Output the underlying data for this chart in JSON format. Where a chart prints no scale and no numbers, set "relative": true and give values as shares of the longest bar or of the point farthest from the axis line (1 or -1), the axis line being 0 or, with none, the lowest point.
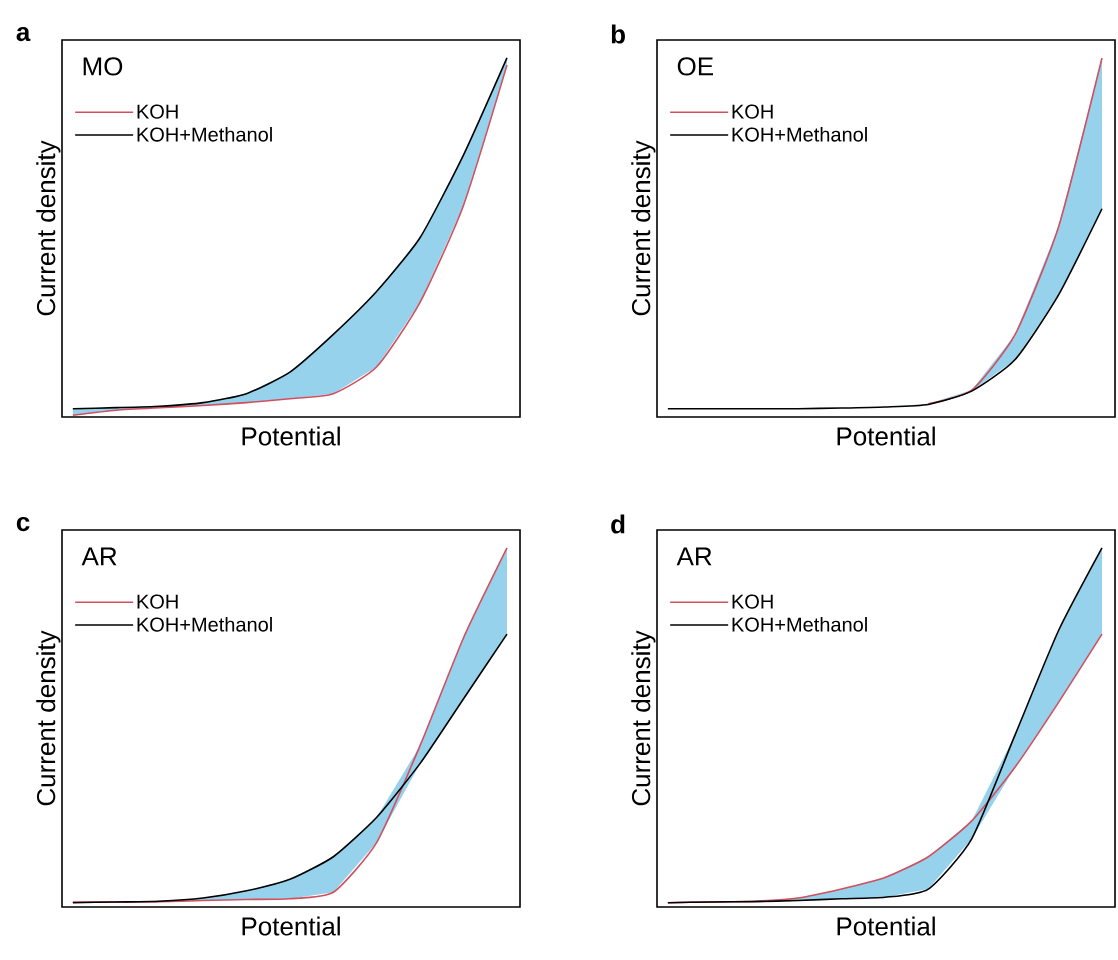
{
  "chart_data": [
    {
      "type": "line",
      "title": "a",
      "annotations": [
        "MO"
      ],
      "xlabel": "Potential",
      "ylabel": "Current density",
      "relative": true,
      "legend": "top left",
      "categories": [
        null,
        null,
        null,
        null,
        null,
        null,
        null,
        null,
        null,
        null,
        null
      ],
      "series": [
        {
          "name": "KOH",
          "color": "#d0505f",
          "values": [
            0.005,
            0.019,
            0.026,
            0.032,
            0.04,
            0.051,
            0.065,
            0.14,
            0.32,
            0.59,
            0.98
          ]
        },
        {
          "name": "KOH+Methanol",
          "color": "#000000",
          "values": [
            0.023,
            0.026,
            0.03,
            0.04,
            0.065,
            0.125,
            0.23,
            0.35,
            0.5,
            0.73,
            1
          ],
          "lower": [
            0.005,
            0.019,
            0.026,
            0.032,
            0.04,
            0.051,
            0.065,
            0.14,
            0.32,
            0.59,
            0.98
          ],
          "upper": [
            0.023,
            0.026,
            0.03,
            0.04,
            0.065,
            0.125,
            0.23,
            0.35,
            0.5,
            0.73,
            1
          ]
        }
      ]
    },
    {
      "type": "line",
      "title": "b",
      "annotations": [
        "OE"
      ],
      "xlabel": "Potential",
      "ylabel": "Current density",
      "relative": true,
      "legend": "top left",
      "categories": [
        null,
        null,
        null,
        null,
        null,
        null,
        null,
        null,
        null,
        null,
        null
      ],
      "series": [
        {
          "name": "KOH",
          "color": "#d0505f",
          "values": [
            null,
            null,
            null,
            null,
            null,
            null,
            0.037,
            0.075,
            0.23,
            0.53,
            1
          ]
        },
        {
          "name": "KOH+Methanol",
          "color": "#000000",
          "values": [
            0.023,
            0.023,
            0.023,
            0.023,
            0.025,
            0.028,
            0.035,
            0.072,
            0.16,
            0.34,
            0.58
          ],
          "lower": [
            0.023,
            0.023,
            0.023,
            0.023,
            0.025,
            0.028,
            0.035,
            0.072,
            0.16,
            0.34,
            0.58
          ],
          "upper": [
            0.023,
            0.023,
            0.023,
            0.023,
            0.025,
            0.028,
            0.037,
            0.075,
            0.23,
            0.53,
            1
          ]
        }
      ]
    },
    {
      "type": "line",
      "title": "c",
      "annotations": [
        "AR"
      ],
      "xlabel": "Potential",
      "ylabel": "Current density",
      "relative": true,
      "legend": "top left",
      "categories": [
        null,
        null,
        null,
        null,
        null,
        null,
        null,
        null,
        null,
        null,
        null
      ],
      "series": [
        {
          "name": "KOH",
          "color": "#d0505f",
          "values": [
            0.014,
            0.014,
            0.015,
            0.018,
            0.021,
            0.023,
            0.041,
            0.18,
            0.45,
            0.75,
            1
          ]
        },
        {
          "name": "KOH+Methanol",
          "color": "#000000",
          "values": [
            0.012,
            0.014,
            0.016,
            0.025,
            0.045,
            0.077,
            0.14,
            0.25,
            0.4,
            0.5801,
            0.76
          ],
          "lower": [
            0.012,
            0.014,
            0.015,
            0.018,
            0.021,
            0.023,
            0.041,
            0.18,
            0.4,
            0.5801,
            0.76
          ],
          "upper": [
            0.014,
            0.014,
            0.016,
            0.025,
            0.045,
            0.077,
            0.14,
            0.25,
            0.45,
            0.75,
            1
          ]
        }
      ]
    },
    {
      "type": "line",
      "title": "d",
      "annotations": [
        "AR"
      ],
      "xlabel": "Potential",
      "ylabel": "Current density",
      "relative": true,
      "legend": "top left",
      "categories": [
        null,
        null,
        null,
        null,
        null,
        null,
        null,
        null,
        null,
        null,
        null
      ],
      "series": [
        {
          "name": "KOH",
          "color": "#d0505f",
          "values": [
            0.012,
            0.014,
            0.016,
            0.025,
            0.05,
            0.082,
            0.14,
            0.24,
            0.39,
            0.57,
            0.76
          ]
        },
        {
          "name": "KOH+Methanol",
          "color": "#000000",
          "values": [
            0.012,
            0.014,
            0.015,
            0.018,
            0.023,
            0.027,
            0.05,
            0.19,
            0.48,
            0.77,
            1
          ],
          "lower": [
            0.012,
            0.014,
            0.015,
            0.018,
            0.023,
            0.027,
            0.05,
            0.19,
            0.39,
            0.57,
            0.76
          ],
          "upper": [
            0.012,
            0.014,
            0.016,
            0.025,
            0.05,
            0.082,
            0.14,
            0.24,
            0.48,
            0.77,
            1
          ]
        }
      ]
    }
  ]
}
